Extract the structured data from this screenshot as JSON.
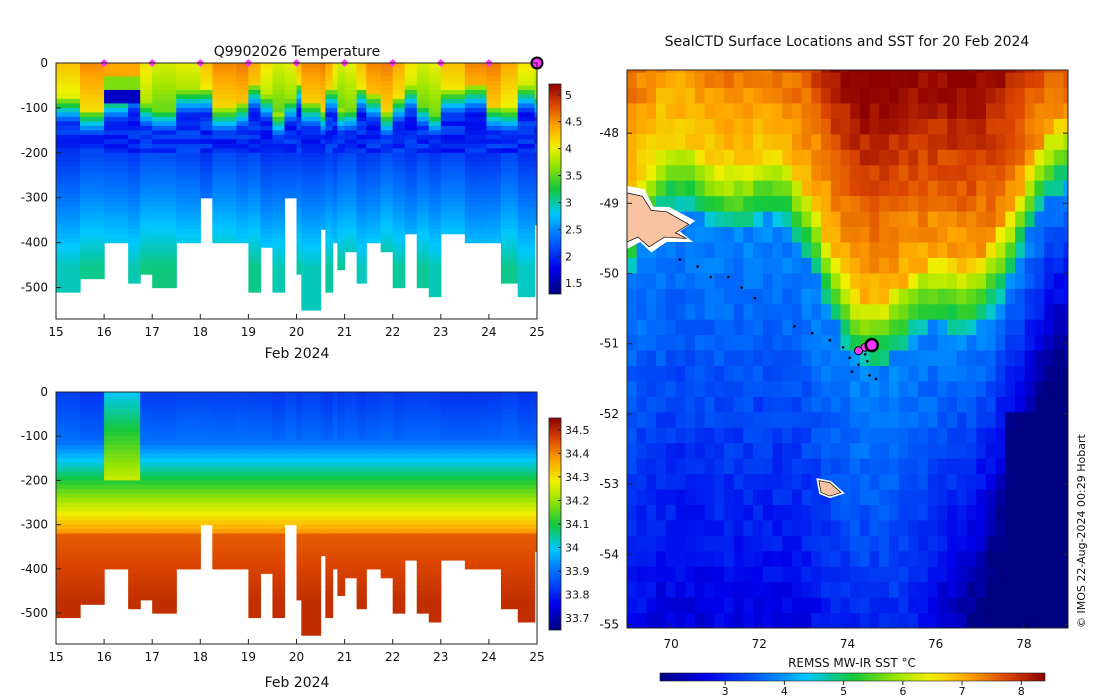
{
  "credit": "© IMOS 22-Aug-2024 00:29 Hobart",
  "chart_data": [
    {
      "id": "temperature-section",
      "type": "heatmap",
      "title": "Q9902026  Temperature",
      "xlabel": "Feb 2024",
      "ylabel": "",
      "xlim": [
        15,
        25
      ],
      "ylim": [
        -570,
        0
      ],
      "xticks": [
        15,
        16,
        17,
        18,
        19,
        20,
        21,
        22,
        23,
        24,
        25
      ],
      "yticks": [
        0,
        -100,
        -200,
        -300,
        -400,
        -500
      ],
      "colorbar": {
        "min": 1.3,
        "max": 5.2,
        "ticks": [
          1.5,
          2,
          2.5,
          3,
          3.5,
          4,
          4.5,
          5
        ]
      },
      "profile_markers_x": [
        16,
        17,
        18,
        19,
        20,
        21,
        22,
        23,
        24
      ],
      "latest_marker_x": 25,
      "profiles": [
        {
          "t": 15.0,
          "d": 510
        },
        {
          "t": 15.5,
          "d": 475
        },
        {
          "t": 16.0,
          "d": 400
        },
        {
          "t": 16.5,
          "d": 490
        },
        {
          "t": 16.75,
          "d": 470
        },
        {
          "t": 17.0,
          "d": 500
        },
        {
          "t": 17.5,
          "d": 400
        },
        {
          "t": 18.0,
          "d": 300
        },
        {
          "t": 18.25,
          "d": 400
        },
        {
          "t": 18.75,
          "d": 400
        },
        {
          "t": 19.0,
          "d": 505
        },
        {
          "t": 19.25,
          "d": 405
        },
        {
          "t": 19.5,
          "d": 505
        },
        {
          "t": 19.75,
          "d": 300
        },
        {
          "t": 20.0,
          "d": 470
        },
        {
          "t": 20.1,
          "d": 550
        },
        {
          "t": 20.5,
          "d": 370
        },
        {
          "t": 20.6,
          "d": 505
        },
        {
          "t": 20.75,
          "d": 395
        },
        {
          "t": 20.85,
          "d": 455
        },
        {
          "t": 21.0,
          "d": 420
        },
        {
          "t": 21.25,
          "d": 490
        },
        {
          "t": 21.45,
          "d": 400
        },
        {
          "t": 21.75,
          "d": 415
        },
        {
          "t": 22.0,
          "d": 500
        },
        {
          "t": 22.25,
          "d": 375
        },
        {
          "t": 22.5,
          "d": 500
        },
        {
          "t": 22.75,
          "d": 520
        },
        {
          "t": 23.0,
          "d": 375
        },
        {
          "t": 23.5,
          "d": 400
        },
        {
          "t": 23.95,
          "d": 400
        },
        {
          "t": 24.25,
          "d": 490
        },
        {
          "t": 24.6,
          "d": 520
        },
        {
          "t": 24.95,
          "d": 360
        }
      ]
    },
    {
      "id": "salinity-section",
      "type": "heatmap",
      "title": "",
      "xlabel": "Feb 2024",
      "ylabel": "",
      "xlim": [
        15,
        25
      ],
      "ylim": [
        -570,
        0
      ],
      "xticks": [
        15,
        16,
        17,
        18,
        19,
        20,
        21,
        22,
        23,
        24,
        25
      ],
      "yticks": [
        0,
        -100,
        -200,
        -300,
        -400,
        -500
      ],
      "colorbar": {
        "min": 33.65,
        "max": 34.55,
        "ticks": [
          33.7,
          33.8,
          33.9,
          34,
          34.1,
          34.2,
          34.3,
          34.4,
          34.5
        ]
      }
    },
    {
      "id": "sst-map",
      "type": "heatmap",
      "title": "SealCTD Surface Locations and SST for 20 Feb 2024",
      "xlabel": "",
      "ylabel": "",
      "xlim": [
        69,
        79
      ],
      "ylim": [
        -55.05,
        -47.1
      ],
      "xticks": [
        70,
        72,
        74,
        76,
        78
      ],
      "yticks": [
        -48,
        -49,
        -50,
        -51,
        -52,
        -53,
        -54,
        -55
      ],
      "colorbar": {
        "min": 1.9,
        "max": 8.4,
        "ticks": [
          3,
          4,
          5,
          6,
          7,
          8
        ],
        "label": "REMSS MW-IR SST °C"
      },
      "track": [
        [
          70.2,
          -49.8
        ],
        [
          70.6,
          -49.9
        ],
        [
          70.9,
          -50.05
        ],
        [
          71.3,
          -50.05
        ],
        [
          71.6,
          -50.2
        ],
        [
          71.9,
          -50.35
        ],
        [
          72.8,
          -50.75
        ],
        [
          73.2,
          -50.85
        ],
        [
          73.6,
          -50.95
        ],
        [
          73.9,
          -51.05
        ],
        [
          74.05,
          -51.2
        ],
        [
          74.25,
          -51.3
        ],
        [
          74.45,
          -51.25
        ],
        [
          74.5,
          -51.45
        ],
        [
          74.65,
          -51.5
        ],
        [
          74.2,
          -51.1
        ],
        [
          74.4,
          -51.15
        ],
        [
          74.1,
          -51.4
        ]
      ],
      "recent_positions": [
        [
          74.25,
          -51.1
        ],
        [
          74.4,
          -51.05
        ]
      ],
      "latest_position": [
        74.55,
        -51.02
      ]
    }
  ]
}
